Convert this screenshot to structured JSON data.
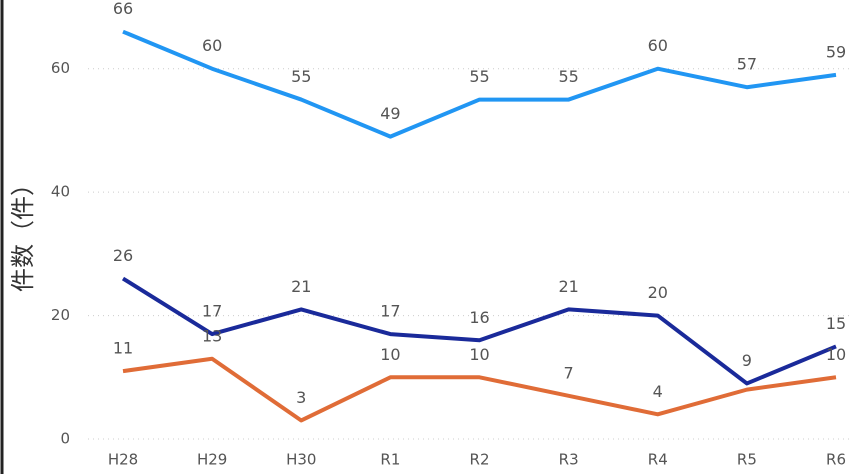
{
  "chart_data": {
    "type": "line",
    "y_label": "件数（件）",
    "categories": [
      "H28",
      "H29",
      "H30",
      "R1",
      "R2",
      "R3",
      "R4",
      "R5",
      "R6"
    ],
    "series": [
      {
        "color": "#2196f3",
        "values": [
          66,
          60,
          55,
          49,
          55,
          55,
          60,
          57,
          59
        ]
      },
      {
        "color": "#1a2a9a",
        "values": [
          26,
          17,
          21,
          17,
          16,
          21,
          20,
          9,
          15
        ]
      },
      {
        "color": "#e06c37",
        "values": [
          11,
          13,
          3,
          10,
          10,
          7,
          4,
          8,
          10
        ],
        "value_labels": [
          11,
          13,
          3,
          10,
          10,
          7,
          4,
          null,
          10
        ]
      }
    ],
    "ylim": [
      0,
      70
    ],
    "yticks": [
      0,
      20,
      40,
      60
    ],
    "grid": true
  }
}
